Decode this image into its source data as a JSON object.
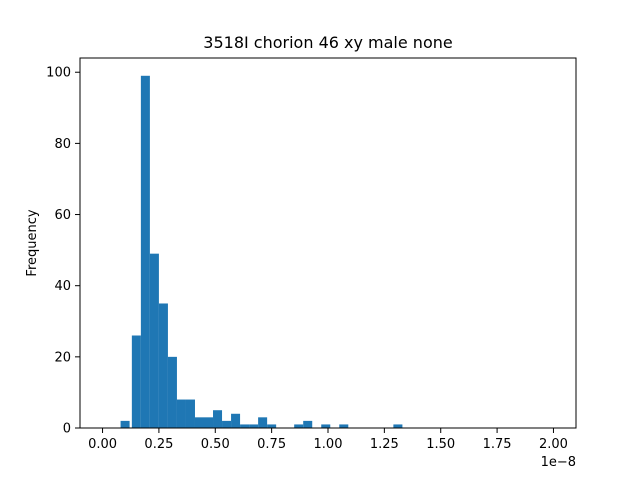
{
  "chart_data": {
    "type": "bar",
    "title": "3518I chorion 46 xy male none",
    "xlabel": "",
    "ylabel": "Frequency",
    "x_offset_text": "1e−8",
    "xlim": [
      -0.1,
      2.1
    ],
    "ylim": [
      0,
      104
    ],
    "grid": false,
    "bin_width": 0.04,
    "bins": [
      {
        "x": 0.08,
        "count": 2
      },
      {
        "x": 0.13,
        "count": 26
      },
      {
        "x": 0.17,
        "count": 99
      },
      {
        "x": 0.21,
        "count": 49
      },
      {
        "x": 0.25,
        "count": 35
      },
      {
        "x": 0.29,
        "count": 20
      },
      {
        "x": 0.33,
        "count": 8
      },
      {
        "x": 0.37,
        "count": 8
      },
      {
        "x": 0.41,
        "count": 3
      },
      {
        "x": 0.45,
        "count": 3
      },
      {
        "x": 0.49,
        "count": 5
      },
      {
        "x": 0.53,
        "count": 2
      },
      {
        "x": 0.57,
        "count": 4
      },
      {
        "x": 0.61,
        "count": 1
      },
      {
        "x": 0.65,
        "count": 1
      },
      {
        "x": 0.69,
        "count": 3
      },
      {
        "x": 0.73,
        "count": 1
      },
      {
        "x": 0.85,
        "count": 1
      },
      {
        "x": 0.89,
        "count": 2
      },
      {
        "x": 0.97,
        "count": 1
      },
      {
        "x": 1.05,
        "count": 1
      },
      {
        "x": 1.29,
        "count": 1
      }
    ],
    "xticks": [
      "0.00",
      "0.25",
      "0.50",
      "0.75",
      "1.00",
      "1.25",
      "1.50",
      "1.75",
      "2.00"
    ],
    "yticks": [
      "0",
      "20",
      "40",
      "60",
      "80",
      "100"
    ],
    "colors": {
      "bar": "#1f77b4",
      "axis": "#000000"
    }
  }
}
